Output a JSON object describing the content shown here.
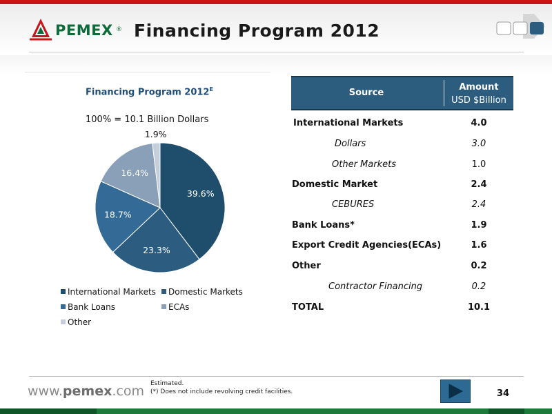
{
  "header": {
    "logo_text": "PEMEX",
    "logo_reg": "®",
    "title": "Financing Program 2012"
  },
  "colors": {
    "accent_red": "#c8141b",
    "brand_green": "#0e6b3c",
    "table_header": "#2d5d7e"
  },
  "chart_data": {
    "type": "pie",
    "title": "Financing Program 2012",
    "title_superscript": "E",
    "subtitle": "100% = 10.1 Billion Dollars",
    "categories": [
      "International Markets",
      "Domestic Markets",
      "Bank Loans",
      "ECAs",
      "Other"
    ],
    "values": [
      39.6,
      23.3,
      18.7,
      16.4,
      1.9
    ],
    "labels": [
      "39.6%",
      "23.3%",
      "18.7%",
      "16.4%",
      "1.9%"
    ],
    "colors": [
      "#1f4e6d",
      "#2c5c80",
      "#336b96",
      "#8aa0b8",
      "#c4cfdb"
    ],
    "legend_position": "bottom"
  },
  "table": {
    "header_source": "Source",
    "header_amount_line1": "Amount",
    "header_amount_line2": "USD $Billion",
    "rows": [
      {
        "label": "International Markets",
        "value": "4.0"
      },
      {
        "label": "Dollars",
        "value": "3.0"
      },
      {
        "label": "Other Markets",
        "value": "1.0"
      },
      {
        "label": "Domestic Market",
        "value": "2.4"
      },
      {
        "label": "CEBURES",
        "value": "2.4"
      },
      {
        "label": "Bank Loans*",
        "value": "1.9"
      },
      {
        "label": "Export Credit Agencies(ECAs)",
        "value": "1.6"
      },
      {
        "label": "Other",
        "value": "0.2"
      },
      {
        "label": "Contractor Financing",
        "value": "0.2"
      },
      {
        "label": "TOTAL",
        "value": "10.1"
      }
    ]
  },
  "footer": {
    "url_prefix": "www.",
    "url_brand": "pemex",
    "url_suffix": ".com",
    "note1": "Estimated.",
    "note2": "(*)    Does not include revolving credit facilities.",
    "page_number": "34",
    "next_icon": "play-arrow-icon"
  }
}
